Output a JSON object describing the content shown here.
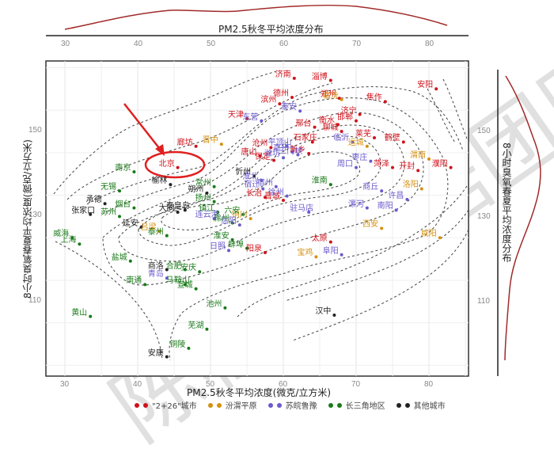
{
  "top_marginal": {
    "title": "PM2.5秋冬平均浓度分布",
    "ticks": [
      "30",
      "40",
      "50",
      "60",
      "70",
      "80"
    ]
  },
  "right_marginal": {
    "title": "8小时臭氧春夏平均浓度分布",
    "ticks": [
      "150",
      "130",
      "110"
    ]
  },
  "watermark": "陈桂路数据团队",
  "legend": [
    {
      "label": "\"2+26\"城市",
      "color": "#d0121b"
    },
    {
      "label": "汾渭平原",
      "color": "#d4900f"
    },
    {
      "label": "苏皖鲁豫",
      "color": "#6a5acd"
    },
    {
      "label": "长三角地区",
      "color": "#1a7a1a"
    },
    {
      "label": "其他城市",
      "color": "#222222"
    }
  ],
  "annotation": {
    "label": "北京",
    "note": "red arrow and circle highlighting 北京"
  },
  "chart_data": {
    "type": "scatter",
    "title": "",
    "xlabel": "PM2.5秋冬平均浓度(微克/立方米)",
    "ylabel": "8小时臭氧春夏平均浓度(微克/立方米)",
    "xlim": [
      27,
      85
    ],
    "ylim": [
      96,
      164
    ],
    "x_ticks": [
      30,
      40,
      50,
      60,
      70,
      80
    ],
    "y_ticks": [
      110,
      130,
      150
    ],
    "grid": true,
    "contours": "dashed 2D density contours",
    "marginals": {
      "top": "PM2.5 density curve",
      "right": "O3 density curve"
    },
    "series": [
      {
        "name": "\"2+26\"城市",
        "color": "#d0121b",
        "points": [
          {
            "city": "北京",
            "x": 45.5,
            "y": 141.5
          },
          {
            "city": "廊坊",
            "x": 48.0,
            "y": 146.5
          },
          {
            "city": "天津",
            "x": 55.0,
            "y": 153.0
          },
          {
            "city": "唐山",
            "x": 56.8,
            "y": 144.3
          },
          {
            "city": "沧州",
            "x": 58.3,
            "y": 146.2
          },
          {
            "city": "保定",
            "x": 58.7,
            "y": 143.2
          },
          {
            "city": "滨州",
            "x": 59.5,
            "y": 156.5
          },
          {
            "city": "济南",
            "x": 61.5,
            "y": 162.5
          },
          {
            "city": "德州",
            "x": 61.2,
            "y": 158.0
          },
          {
            "city": "淄博",
            "x": 66.5,
            "y": 162.0
          },
          {
            "city": "郑州",
            "x": 67.7,
            "y": 157.8
          },
          {
            "city": "邢台",
            "x": 64.3,
            "y": 151.0
          },
          {
            "city": "衡水",
            "x": 67.5,
            "y": 151.6
          },
          {
            "city": "济宁",
            "x": 70.5,
            "y": 154.0
          },
          {
            "city": "邯郸",
            "x": 70.0,
            "y": 152.5
          },
          {
            "city": "石家庄",
            "x": 64.0,
            "y": 147.5
          },
          {
            "city": "新乡",
            "x": 63.5,
            "y": 144.8
          },
          {
            "city": "聊城",
            "x": 68.0,
            "y": 150.0
          },
          {
            "city": "焦作",
            "x": 74.0,
            "y": 157.0
          },
          {
            "city": "莱芜",
            "x": 72.5,
            "y": 148.5
          },
          {
            "city": "鹤壁",
            "x": 76.5,
            "y": 147.5
          },
          {
            "city": "菏泽",
            "x": 75.0,
            "y": 141.5
          },
          {
            "city": "开封",
            "x": 78.5,
            "y": 140.8
          },
          {
            "city": "濮阳",
            "x": 83.0,
            "y": 141.5
          },
          {
            "city": "安阳",
            "x": 81.0,
            "y": 160.0
          },
          {
            "city": "长治",
            "x": 57.5,
            "y": 134.5
          },
          {
            "city": "晋城",
            "x": 60.0,
            "y": 133.8
          },
          {
            "city": "太原",
            "x": 66.5,
            "y": 124.0
          },
          {
            "city": "阳泉",
            "x": 57.5,
            "y": 121.5
          }
        ]
      },
      {
        "name": "汾渭平原",
        "color": "#d4900f",
        "points": [
          {
            "city": "晋中",
            "x": 51.5,
            "y": 147.0
          },
          {
            "city": "临汾",
            "x": 68.0,
            "y": 157.5
          },
          {
            "city": "运城",
            "x": 71.5,
            "y": 146.5
          },
          {
            "city": "渭南",
            "x": 80.0,
            "y": 143.5
          },
          {
            "city": "洛阳",
            "x": 79.0,
            "y": 136.5
          },
          {
            "city": "铜川",
            "x": 55.5,
            "y": 129.5
          },
          {
            "city": "宝鸡",
            "x": 64.5,
            "y": 120.5
          },
          {
            "city": "西安",
            "x": 73.5,
            "y": 127.2
          },
          {
            "city": "咸阳",
            "x": 81.5,
            "y": 125.0
          },
          {
            "city": "吕梁",
            "x": 43.0,
            "y": 126.5
          }
        ]
      },
      {
        "name": "苏皖鲁豫",
        "color": "#6a5acd",
        "points": [
          {
            "city": "东营",
            "x": 57.0,
            "y": 152.5
          },
          {
            "city": "泰安",
            "x": 62.3,
            "y": 154.8
          },
          {
            "city": "平顶山",
            "x": 60.5,
            "y": 146.5
          },
          {
            "city": "潍坊",
            "x": 60.0,
            "y": 143.8
          },
          {
            "city": "三门峡",
            "x": 62.0,
            "y": 144.5
          },
          {
            "city": "亳州",
            "x": 61.2,
            "y": 145.2
          },
          {
            "city": "淮北",
            "x": 57.0,
            "y": 138.5
          },
          {
            "city": "宿州",
            "x": 59.0,
            "y": 137.0
          },
          {
            "city": "宿迁",
            "x": 57.2,
            "y": 136.5
          },
          {
            "city": "徐州",
            "x": 60.5,
            "y": 134.8
          },
          {
            "city": "临沂",
            "x": 69.5,
            "y": 147.5
          },
          {
            "city": "周口",
            "x": 70.0,
            "y": 141.5
          },
          {
            "city": "枣庄",
            "x": 72.0,
            "y": 143.0
          },
          {
            "city": "商丘",
            "x": 73.5,
            "y": 136.0
          },
          {
            "city": "漯河",
            "x": 71.5,
            "y": 132.0
          },
          {
            "city": "南阳",
            "x": 75.5,
            "y": 131.5
          },
          {
            "city": "许昌",
            "x": 77.0,
            "y": 134.0
          },
          {
            "city": "驻马店",
            "x": 63.5,
            "y": 131.0
          },
          {
            "city": "信阳",
            "x": 54.0,
            "y": 128.0
          },
          {
            "city": "阜阳",
            "x": 68.0,
            "y": 121.0
          },
          {
            "city": "连云港",
            "x": 50.5,
            "y": 129.5
          },
          {
            "city": "日照",
            "x": 52.5,
            "y": 122.0
          },
          {
            "city": "青岛",
            "x": 44.0,
            "y": 115.5
          }
        ]
      },
      {
        "name": "长三角地区",
        "color": "#1a7a1a",
        "points": [
          {
            "city": "南京",
            "x": 39.5,
            "y": 140.5
          },
          {
            "city": "无锡",
            "x": 37.5,
            "y": 136.0
          },
          {
            "city": "苏州",
            "x": 37.5,
            "y": 130.0
          },
          {
            "city": "烟台",
            "x": 39.5,
            "y": 132.0
          },
          {
            "city": "泰州",
            "x": 44.0,
            "y": 125.5
          },
          {
            "city": "盐城",
            "x": 39.0,
            "y": 119.5
          },
          {
            "city": "南通",
            "x": 41.0,
            "y": 114.0
          },
          {
            "city": "扬州",
            "x": 50.5,
            "y": 133.5
          },
          {
            "city": "镇江",
            "x": 51.0,
            "y": 131.0
          },
          {
            "city": "常州",
            "x": 50.5,
            "y": 137.0
          },
          {
            "city": "六安",
            "x": 54.5,
            "y": 130.5
          },
          {
            "city": "滁州",
            "x": 53.0,
            "y": 128.5
          },
          {
            "city": "淮安",
            "x": 53.0,
            "y": 124.5
          },
          {
            "city": "蚌埠",
            "x": 55.0,
            "y": 122.5
          },
          {
            "city": "合肥",
            "x": 46.5,
            "y": 117.5
          },
          {
            "city": "马鞍山",
            "x": 46.5,
            "y": 114.0
          },
          {
            "city": "安庆",
            "x": 48.5,
            "y": 117.0
          },
          {
            "city": "宣城",
            "x": 48.0,
            "y": 113.0
          },
          {
            "city": "池州",
            "x": 52.0,
            "y": 108.5
          },
          {
            "city": "芜湖",
            "x": 49.5,
            "y": 103.5
          },
          {
            "city": "铜陵",
            "x": 47.0,
            "y": 99.0
          },
          {
            "city": "黄山",
            "x": 33.5,
            "y": 106.5
          },
          {
            "city": "威海",
            "x": 31.0,
            "y": 125.0
          },
          {
            "city": "上海",
            "x": 32.0,
            "y": 123.5
          },
          {
            "city": "淮南",
            "x": 66.5,
            "y": 137.5
          }
        ]
      },
      {
        "name": "其他城市",
        "color": "#222222",
        "points": [
          {
            "city": "张家口",
            "x": 33.5,
            "y": 130.5
          },
          {
            "city": "承德",
            "x": 35.5,
            "y": 133.0
          },
          {
            "city": "榆林",
            "x": 44.5,
            "y": 137.5
          },
          {
            "city": "朔州",
            "x": 49.5,
            "y": 135.5
          },
          {
            "city": "大同",
            "x": 45.5,
            "y": 131.0
          },
          {
            "city": "秦皇岛",
            "x": 46.5,
            "y": 131.5
          },
          {
            "city": "延安",
            "x": 40.5,
            "y": 127.5
          },
          {
            "city": "商洛",
            "x": 44.0,
            "y": 117.5
          },
          {
            "city": "忻州",
            "x": 56.0,
            "y": 139.5
          },
          {
            "city": "汉中",
            "x": 67.0,
            "y": 106.8
          },
          {
            "city": "安康",
            "x": 44.0,
            "y": 97.0
          }
        ]
      }
    ]
  }
}
